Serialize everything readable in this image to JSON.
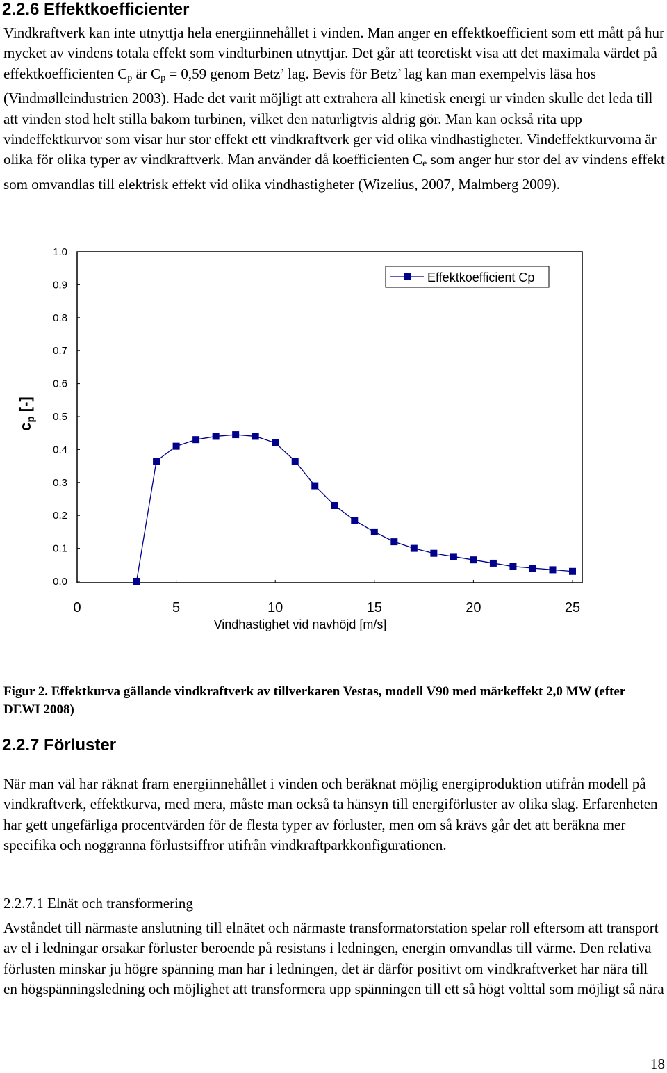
{
  "document": {
    "section_1": {
      "heading": "2.2.6 Effektkoefficienter",
      "paragraph": [
        "Vindkraftverk kan inte utnyttja hela energiinnehållet i vinden. Man anger en effektkoefficient som ett mått på hur mycket av vindens totala effekt som vindturbinen utnyttjar. Det går att teoretiskt visa att det maximala värdet på effektkoefficienten C",
        "p",
        " är C",
        "p",
        " = 0,59 genom Betz’ lag. Bevis för Betz’ lag kan man exempelvis läsa hos (Vindmølleindustrien 2003). Hade det varit möjligt att extrahera all kinetisk energi ur vinden skulle det leda till att vinden stod helt stilla bakom turbinen, vilket den naturligtvis aldrig gör. Man kan också rita upp vindeffektkurvor som visar hur stor effekt ett vindkraftverk ger vid olika vindhastigheter. Vindeffektkurvorna är olika för olika typer av vindkraftverk. Man använder då koefficienten C",
        "e",
        " som anger hur stor del av vindens effekt som omvandlas till elektrisk effekt vid olika vindhastigheter (Wizelius, 2007, Malmberg 2009)."
      ]
    },
    "caption": "Figur 2. Effektkurva gällande vindkraftverk av tillverkaren Vestas, modell V90 med märkeffekt 2,0 MW (efter DEWI 2008)",
    "section_2": {
      "heading": "2.2.7 Förluster",
      "paragraph": "När man väl har räknat fram energiinnehållet i vinden och beräknat möjlig energiproduktion utifrån modell på vindkraftverk, effektkurva, med mera, måste man också ta hänsyn till energiförluster av olika slag. Erfarenheten har gett ungefärliga procentvärden för de flesta typer av förluster, men om så krävs går det att beräkna mer specifika och noggranna förlustsiffror utifrån vindkraftparkkonfigurationen."
    },
    "section_3": {
      "heading": "2.2.7.1 Elnät och transformering",
      "paragraph": "Avståndet till närmaste anslutning till elnätet och närmaste transformatorstation spelar roll eftersom att transport av el i ledningar orsakar förluster beroende på resistans i ledningen, energin omvandlas till värme. Den relativa förlusten minskar ju högre spänning man har i ledningen, det är därför positivt om vindkraftverket har nära till en högspänningsledning och möjlighet att transformera upp spänningen till ett så högt volttal som möjligt så nära"
    },
    "page_number": 18
  },
  "chart_data": {
    "type": "line",
    "x_label": "Vindhastighet vid navhöjd [m/s]",
    "y_label": [
      "c",
      "p",
      " [-]"
    ],
    "x": [
      3,
      4,
      5,
      6,
      7,
      8,
      9,
      10,
      11,
      12,
      13,
      14,
      15,
      16,
      17,
      18,
      19,
      20,
      21,
      22,
      23,
      24,
      25
    ],
    "series": [
      {
        "name": "Effektkoefficient Cp",
        "color": "#00008b",
        "values": [
          0.0,
          0.365,
          0.41,
          0.43,
          0.44,
          0.445,
          0.44,
          0.42,
          0.365,
          0.29,
          0.23,
          0.185,
          0.15,
          0.12,
          0.1,
          0.085,
          0.075,
          0.065,
          0.055,
          0.045,
          0.04,
          0.035,
          0.03
        ]
      }
    ],
    "xlim": [
      0,
      25
    ],
    "xticks": [
      0,
      5,
      10,
      15,
      20,
      25
    ],
    "ylim": [
      0,
      1
    ],
    "yticks": [
      {
        "value": 0,
        "label": "0.0"
      },
      0.1,
      0.2,
      0.3,
      0.4,
      0.5,
      0.6,
      0.7,
      0.8,
      0.9,
      {
        "value": 1,
        "label": "1.0"
      }
    ],
    "grid": false,
    "legend": "upper right"
  }
}
